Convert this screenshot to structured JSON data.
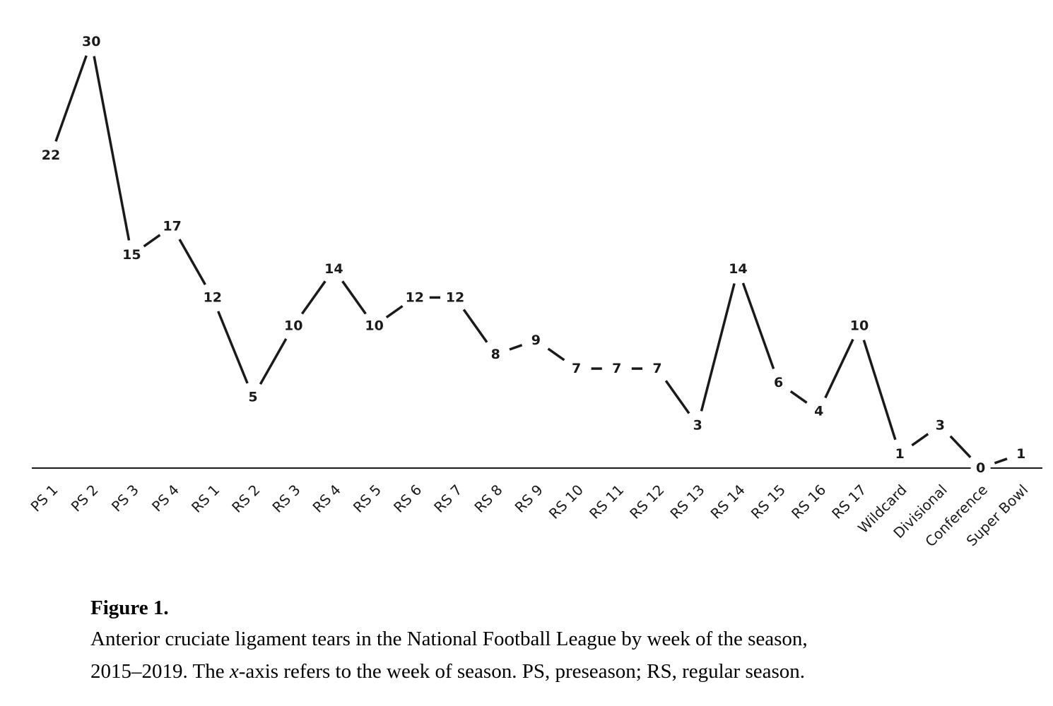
{
  "chart_data": {
    "type": "line",
    "categories": [
      "PS 1",
      "PS 2",
      "PS 3",
      "PS 4",
      "RS 1",
      "RS 2",
      "RS 3",
      "RS 4",
      "RS 5",
      "RS 6",
      "RS 7",
      "RS 8",
      "RS 9",
      "RS 10",
      "RS 11",
      "RS 12",
      "RS 13",
      "RS 14",
      "RS 15",
      "RS 16",
      "RS 17",
      "Wildcard",
      "Divisional",
      "Conference",
      "Super Bowl"
    ],
    "values": [
      22,
      30,
      15,
      17,
      12,
      5,
      10,
      14,
      10,
      12,
      12,
      8,
      9,
      7,
      7,
      7,
      3,
      14,
      6,
      4,
      10,
      1,
      3,
      0,
      1
    ],
    "data_labels": [
      "22",
      "30",
      "15",
      "17",
      "12",
      "5",
      "10",
      "14",
      "10",
      "12",
      "12",
      "8",
      "9",
      "7",
      "7",
      "7",
      "3",
      "14",
      "6",
      "4",
      "10",
      "1",
      "3",
      "0",
      "1"
    ],
    "ylim": [
      0,
      30
    ],
    "grid": false,
    "legend": "none",
    "line_color": "#1a1a1a",
    "axis_color": "#1a1a1a"
  },
  "caption": {
    "label": "Figure 1.",
    "line1": "Anterior cruciate ligament tears in the National Football League by week of the season,",
    "line2_a": "2015–2019. The ",
    "line2_axis": "x",
    "line2_b": "-axis refers to the week of season. PS, preseason; RS, regular season."
  }
}
